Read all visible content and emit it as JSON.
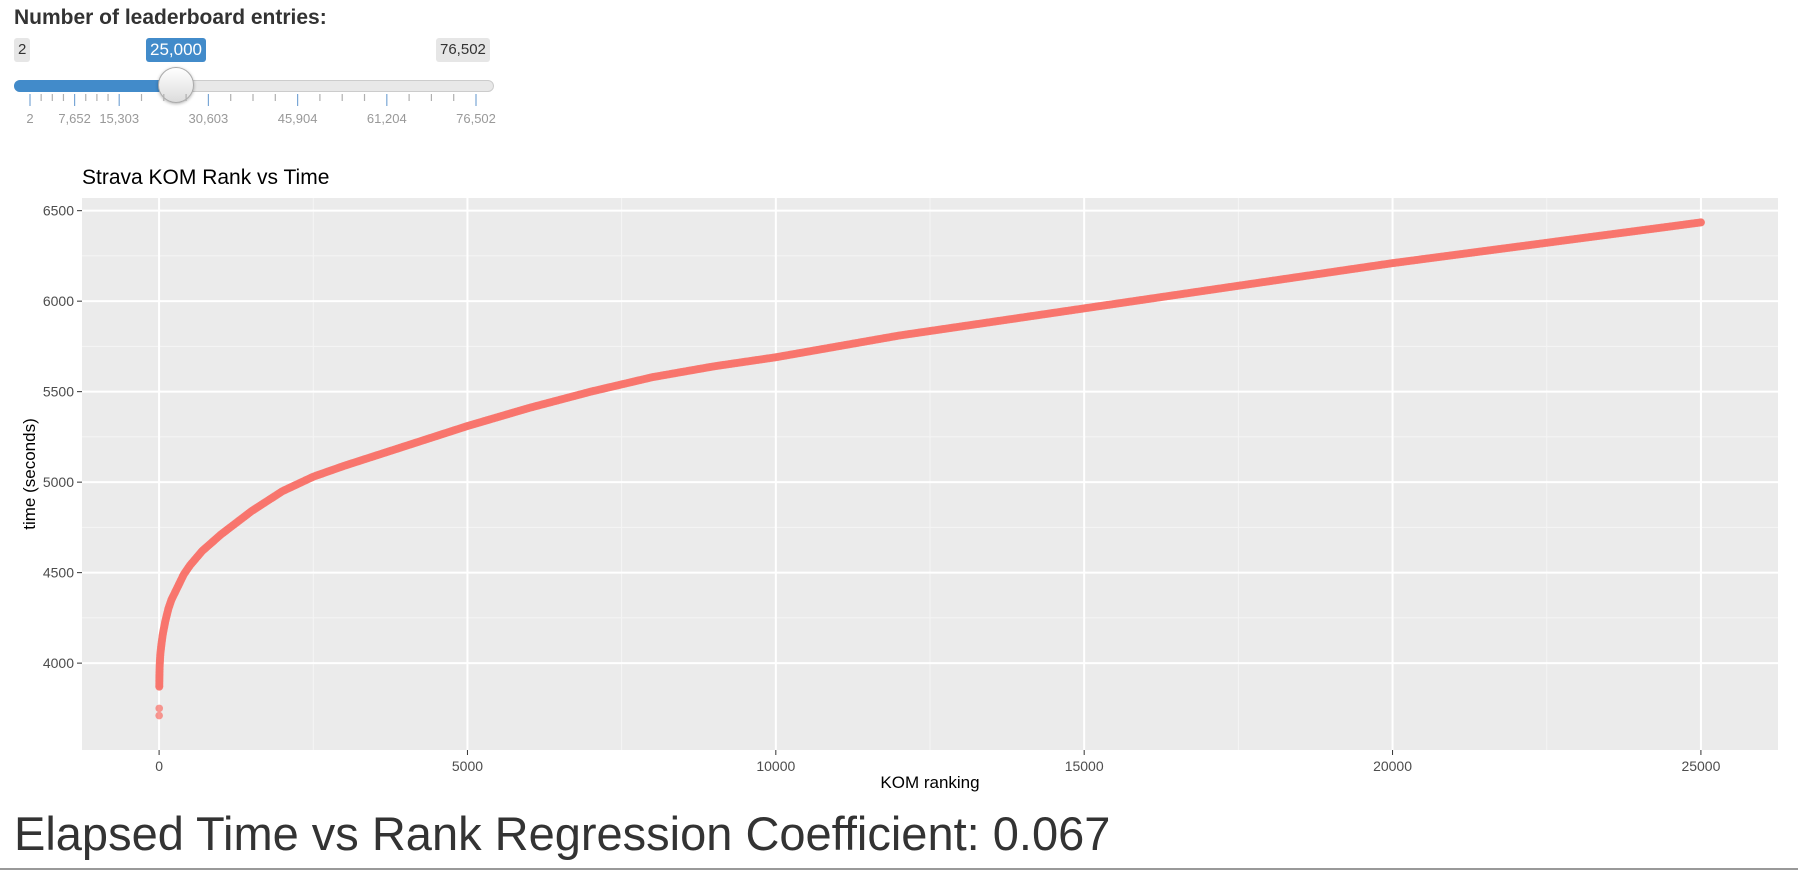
{
  "slider": {
    "label": "Number of leaderboard entries:",
    "min_label": "2",
    "max_label": "76,502",
    "current_label": "25,000",
    "min": 2,
    "max": 76502,
    "value": 25000,
    "grid_labels": [
      "2",
      "7,652",
      "15,303",
      "30,603",
      "45,904",
      "61,204",
      "76,502"
    ],
    "grid_values": [
      2,
      7652,
      15303,
      30603,
      45904,
      61204,
      76502
    ],
    "accent_color": "#428bca"
  },
  "chart_data": {
    "type": "scatter",
    "title": "Strava KOM Rank vs Time",
    "xlabel": "KOM ranking",
    "ylabel": "time (seconds)",
    "xlim": [
      -1250,
      26250
    ],
    "ylim": [
      3520,
      6570
    ],
    "xticks": [
      0,
      5000,
      10000,
      15000,
      20000,
      25000
    ],
    "yticks": [
      4000,
      4500,
      5000,
      5500,
      6000,
      6500
    ],
    "grid": true,
    "point_color": "#f8766d",
    "panel_background": "#ebebeb",
    "points": [
      [
        1,
        3710
      ],
      [
        2,
        3750
      ],
      [
        3,
        3870
      ],
      [
        5,
        3930
      ],
      [
        10,
        3990
      ],
      [
        20,
        4050
      ],
      [
        40,
        4110
      ],
      [
        60,
        4160
      ],
      [
        100,
        4230
      ],
      [
        150,
        4300
      ],
      [
        200,
        4350
      ],
      [
        300,
        4420
      ],
      [
        400,
        4490
      ],
      [
        500,
        4540
      ],
      [
        700,
        4620
      ],
      [
        1000,
        4710
      ],
      [
        1500,
        4840
      ],
      [
        2000,
        4950
      ],
      [
        2500,
        5030
      ],
      [
        3000,
        5090
      ],
      [
        4000,
        5200
      ],
      [
        5000,
        5310
      ],
      [
        6000,
        5410
      ],
      [
        7000,
        5500
      ],
      [
        8000,
        5580
      ],
      [
        9000,
        5640
      ],
      [
        10000,
        5690
      ],
      [
        12000,
        5810
      ],
      [
        14000,
        5910
      ],
      [
        16000,
        6010
      ],
      [
        18000,
        6110
      ],
      [
        20000,
        6210
      ],
      [
        22000,
        6300
      ],
      [
        24000,
        6390
      ],
      [
        25000,
        6435
      ]
    ]
  },
  "footer": {
    "text": "Elapsed Time vs Rank Regression Coefficient: 0.067"
  }
}
